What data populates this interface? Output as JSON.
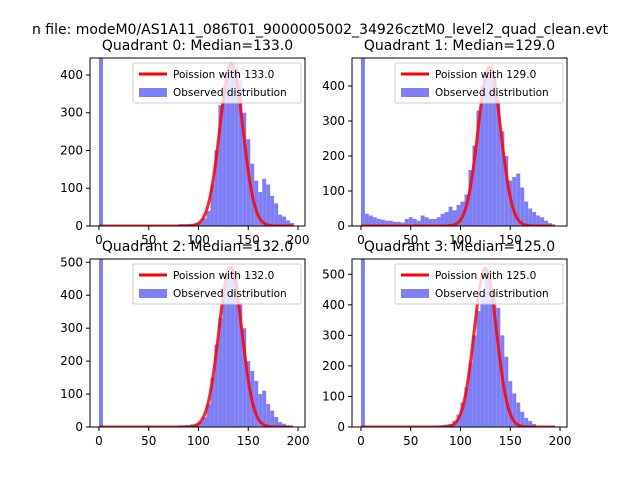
{
  "figure": {
    "suptitle": "n file: modeM0/AS1A11_086T01_9000005002_34926cztM0_level2_quad_clean.evt"
  },
  "colors": {
    "hist": "#7f7ff5",
    "poisson": "#ff0000",
    "axis": "#000000"
  },
  "chart_data": [
    {
      "type": "bar",
      "title": "Quadrant 0: Median=133.0",
      "xlabel": "",
      "ylabel": "",
      "xlim": [
        -9,
        207
      ],
      "ylim": [
        0,
        445
      ],
      "xticks": [
        0,
        50,
        100,
        150,
        200
      ],
      "yticks": [
        0,
        100,
        200,
        300,
        400
      ],
      "bin_width": 4,
      "legend": {
        "position": "top-right",
        "line_label": "Poission with 133.0",
        "hist_label": "Observed distribution"
      },
      "poisson_mean": 133.0,
      "poisson_peak": 430,
      "bins": [
        {
          "x": 0,
          "y": 445
        },
        {
          "x": 80,
          "y": 5
        },
        {
          "x": 84,
          "y": 5
        },
        {
          "x": 88,
          "y": 5
        },
        {
          "x": 92,
          "y": 6
        },
        {
          "x": 96,
          "y": 8
        },
        {
          "x": 100,
          "y": 10
        },
        {
          "x": 104,
          "y": 20
        },
        {
          "x": 108,
          "y": 40
        },
        {
          "x": 112,
          "y": 110
        },
        {
          "x": 116,
          "y": 200
        },
        {
          "x": 120,
          "y": 320
        },
        {
          "x": 124,
          "y": 370
        },
        {
          "x": 128,
          "y": 410
        },
        {
          "x": 132,
          "y": 430
        },
        {
          "x": 136,
          "y": 420
        },
        {
          "x": 140,
          "y": 385
        },
        {
          "x": 144,
          "y": 300
        },
        {
          "x": 148,
          "y": 230
        },
        {
          "x": 152,
          "y": 165
        },
        {
          "x": 156,
          "y": 120
        },
        {
          "x": 160,
          "y": 90
        },
        {
          "x": 164,
          "y": 125
        },
        {
          "x": 168,
          "y": 110
        },
        {
          "x": 172,
          "y": 80
        },
        {
          "x": 176,
          "y": 60
        },
        {
          "x": 180,
          "y": 30
        },
        {
          "x": 184,
          "y": 25
        },
        {
          "x": 188,
          "y": 15
        },
        {
          "x": 192,
          "y": 8
        }
      ]
    },
    {
      "type": "bar",
      "title": "Quadrant 1: Median=129.0",
      "xlabel": "",
      "ylabel": "",
      "xlim": [
        -9,
        207
      ],
      "ylim": [
        0,
        480
      ],
      "xticks": [
        0,
        50,
        100,
        150
      ],
      "yticks": [
        0,
        100,
        200,
        300,
        400
      ],
      "bin_width": 4,
      "legend": {
        "position": "top-right",
        "line_label": "Poission with 129.0",
        "hist_label": "Observed distribution"
      },
      "poisson_mean": 129.0,
      "poisson_peak": 455,
      "bins": [
        {
          "x": 0,
          "y": 480
        },
        {
          "x": 4,
          "y": 35
        },
        {
          "x": 8,
          "y": 30
        },
        {
          "x": 12,
          "y": 25
        },
        {
          "x": 16,
          "y": 20
        },
        {
          "x": 20,
          "y": 18
        },
        {
          "x": 24,
          "y": 15
        },
        {
          "x": 28,
          "y": 15
        },
        {
          "x": 32,
          "y": 12
        },
        {
          "x": 36,
          "y": 12
        },
        {
          "x": 40,
          "y": 10
        },
        {
          "x": 44,
          "y": 20
        },
        {
          "x": 48,
          "y": 25
        },
        {
          "x": 52,
          "y": 20
        },
        {
          "x": 56,
          "y": 15
        },
        {
          "x": 60,
          "y": 30
        },
        {
          "x": 64,
          "y": 25
        },
        {
          "x": 68,
          "y": 20
        },
        {
          "x": 72,
          "y": 20
        },
        {
          "x": 76,
          "y": 25
        },
        {
          "x": 80,
          "y": 35
        },
        {
          "x": 84,
          "y": 40
        },
        {
          "x": 88,
          "y": 55
        },
        {
          "x": 92,
          "y": 45
        },
        {
          "x": 96,
          "y": 60
        },
        {
          "x": 100,
          "y": 70
        },
        {
          "x": 104,
          "y": 90
        },
        {
          "x": 108,
          "y": 160
        },
        {
          "x": 112,
          "y": 230
        },
        {
          "x": 116,
          "y": 330
        },
        {
          "x": 120,
          "y": 400
        },
        {
          "x": 124,
          "y": 440
        },
        {
          "x": 128,
          "y": 455
        },
        {
          "x": 132,
          "y": 430
        },
        {
          "x": 136,
          "y": 360
        },
        {
          "x": 140,
          "y": 270
        },
        {
          "x": 144,
          "y": 200
        },
        {
          "x": 148,
          "y": 130
        },
        {
          "x": 152,
          "y": 140
        },
        {
          "x": 156,
          "y": 150
        },
        {
          "x": 160,
          "y": 110
        },
        {
          "x": 164,
          "y": 70
        },
        {
          "x": 168,
          "y": 50
        },
        {
          "x": 172,
          "y": 40
        },
        {
          "x": 176,
          "y": 30
        },
        {
          "x": 180,
          "y": 25
        },
        {
          "x": 184,
          "y": 15
        },
        {
          "x": 188,
          "y": 8
        }
      ]
    },
    {
      "type": "bar",
      "title": "Quadrant 2: Median=132.0",
      "xlabel": "",
      "ylabel": "",
      "xlim": [
        -9,
        207
      ],
      "ylim": [
        0,
        510
      ],
      "xticks": [
        0,
        50,
        100,
        150,
        200
      ],
      "yticks": [
        0,
        100,
        200,
        300,
        400,
        500
      ],
      "bin_width": 4,
      "legend": {
        "position": "top-right",
        "line_label": "Poission with 132.0",
        "hist_label": "Observed distribution"
      },
      "poisson_mean": 132.0,
      "poisson_peak": 485,
      "bins": [
        {
          "x": 0,
          "y": 510
        },
        {
          "x": 80,
          "y": 5
        },
        {
          "x": 84,
          "y": 5
        },
        {
          "x": 88,
          "y": 6
        },
        {
          "x": 92,
          "y": 8
        },
        {
          "x": 96,
          "y": 10
        },
        {
          "x": 100,
          "y": 15
        },
        {
          "x": 104,
          "y": 30
        },
        {
          "x": 108,
          "y": 70
        },
        {
          "x": 112,
          "y": 150
        },
        {
          "x": 116,
          "y": 250
        },
        {
          "x": 120,
          "y": 330
        },
        {
          "x": 124,
          "y": 400
        },
        {
          "x": 128,
          "y": 470
        },
        {
          "x": 132,
          "y": 485
        },
        {
          "x": 136,
          "y": 460
        },
        {
          "x": 140,
          "y": 380
        },
        {
          "x": 144,
          "y": 300
        },
        {
          "x": 148,
          "y": 200
        },
        {
          "x": 152,
          "y": 170
        },
        {
          "x": 156,
          "y": 140
        },
        {
          "x": 160,
          "y": 100
        },
        {
          "x": 164,
          "y": 110
        },
        {
          "x": 168,
          "y": 70
        },
        {
          "x": 172,
          "y": 50
        },
        {
          "x": 176,
          "y": 30
        },
        {
          "x": 180,
          "y": 15
        },
        {
          "x": 184,
          "y": 10
        },
        {
          "x": 188,
          "y": 5
        }
      ]
    },
    {
      "type": "bar",
      "title": "Quadrant 3: Median=125.0",
      "xlabel": "",
      "ylabel": "",
      "xlim": [
        -9,
        207
      ],
      "ylim": [
        0,
        550
      ],
      "xticks": [
        0,
        50,
        100,
        150,
        200
      ],
      "yticks": [
        0,
        100,
        200,
        300,
        400,
        500
      ],
      "bin_width": 4,
      "legend": {
        "position": "top-right",
        "line_label": "Poission with 125.0",
        "hist_label": "Observed distribution"
      },
      "poisson_mean": 125.0,
      "poisson_peak": 520,
      "bins": [
        {
          "x": 0,
          "y": 550
        },
        {
          "x": 76,
          "y": 5
        },
        {
          "x": 80,
          "y": 6
        },
        {
          "x": 84,
          "y": 8
        },
        {
          "x": 88,
          "y": 10
        },
        {
          "x": 92,
          "y": 20
        },
        {
          "x": 96,
          "y": 40
        },
        {
          "x": 100,
          "y": 80
        },
        {
          "x": 104,
          "y": 130
        },
        {
          "x": 108,
          "y": 210
        },
        {
          "x": 112,
          "y": 300
        },
        {
          "x": 116,
          "y": 380
        },
        {
          "x": 120,
          "y": 430
        },
        {
          "x": 124,
          "y": 510
        },
        {
          "x": 128,
          "y": 480
        },
        {
          "x": 132,
          "y": 440
        },
        {
          "x": 136,
          "y": 390
        },
        {
          "x": 140,
          "y": 300
        },
        {
          "x": 144,
          "y": 230
        },
        {
          "x": 148,
          "y": 150
        },
        {
          "x": 152,
          "y": 110
        },
        {
          "x": 156,
          "y": 80
        },
        {
          "x": 160,
          "y": 50
        },
        {
          "x": 164,
          "y": 30
        },
        {
          "x": 168,
          "y": 20
        },
        {
          "x": 172,
          "y": 10
        }
      ]
    }
  ]
}
